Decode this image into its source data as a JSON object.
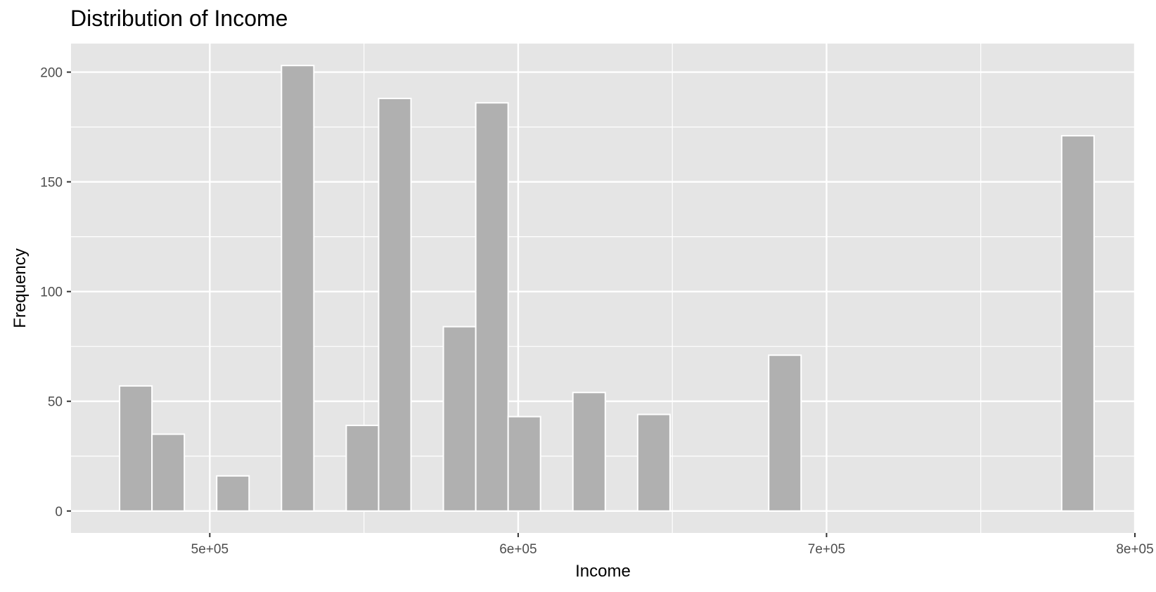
{
  "chart_data": {
    "type": "bar",
    "title": "Distribution of Income",
    "xlabel": "Income",
    "ylabel": "Frequency",
    "xlim": [
      455000,
      800000
    ],
    "ylim": [
      -10,
      213
    ],
    "x_ticks": [
      500000,
      600000,
      700000,
      800000
    ],
    "x_tick_labels": [
      "5e+05",
      "6e+05",
      "7e+05",
      "8e+05"
    ],
    "y_ticks": [
      0,
      50,
      100,
      150,
      200
    ],
    "y_tick_labels": [
      "0",
      "50",
      "100",
      "150",
      "200"
    ],
    "grid": true,
    "bin_width": 10500,
    "bars": [
      {
        "x": 476000,
        "value": 57
      },
      {
        "x": 486500,
        "value": 35
      },
      {
        "x": 507500,
        "value": 16
      },
      {
        "x": 528500,
        "value": 203
      },
      {
        "x": 549500,
        "value": 39
      },
      {
        "x": 560000,
        "value": 188
      },
      {
        "x": 581000,
        "value": 84
      },
      {
        "x": 591500,
        "value": 186
      },
      {
        "x": 602000,
        "value": 43
      },
      {
        "x": 623000,
        "value": 54
      },
      {
        "x": 644000,
        "value": 44
      },
      {
        "x": 686500,
        "value": 71
      },
      {
        "x": 781500,
        "value": 171
      }
    ],
    "colors": {
      "panel": "#e5e5e5",
      "grid": "#ffffff",
      "bar_fill": "#b0b0b0",
      "bar_stroke": "#ffffff"
    }
  }
}
